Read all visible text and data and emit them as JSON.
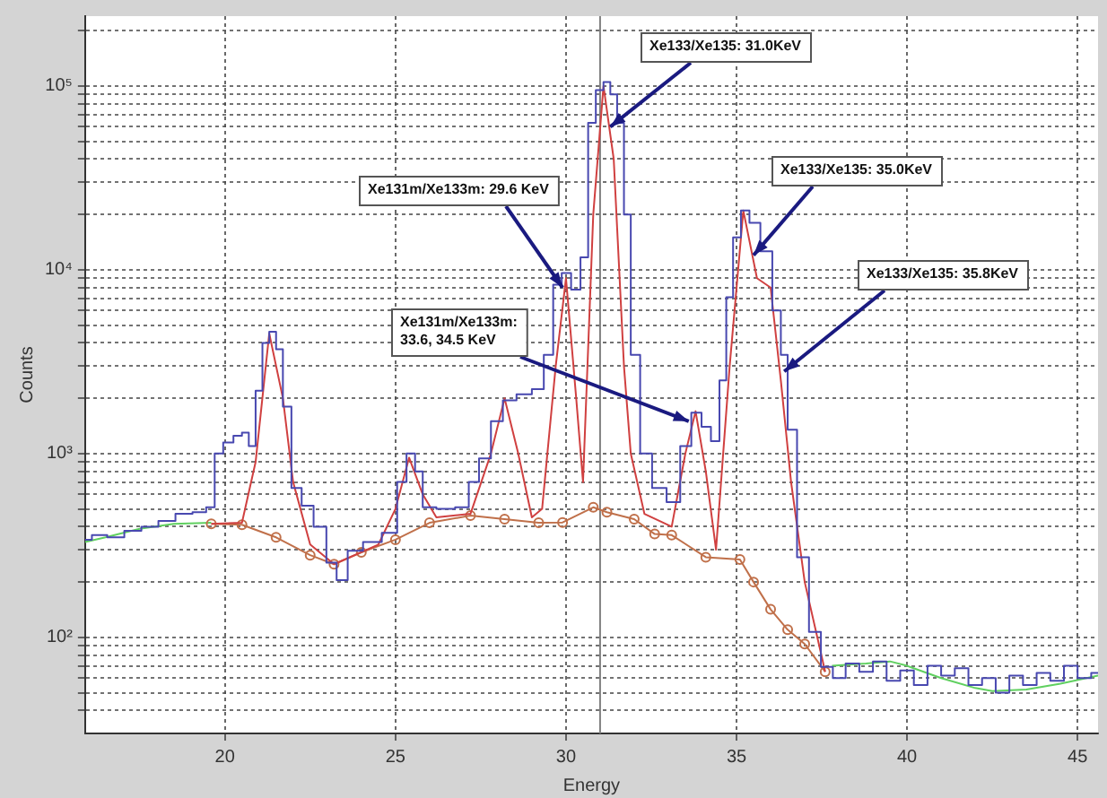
{
  "chart_data": {
    "type": "line",
    "xlabel": "Energy",
    "ylabel": "Counts",
    "log": "y",
    "grid": true,
    "legend": false,
    "xlim": [
      15.9,
      45.6
    ],
    "xticks": [
      20,
      25,
      30,
      35,
      40,
      45
    ],
    "ylim": [
      30,
      240000
    ],
    "yticks": [
      {
        "value": 40,
        "label": null
      },
      {
        "value": 50,
        "label": null
      },
      {
        "value": 60,
        "label": null
      },
      {
        "value": 70,
        "label": null
      },
      {
        "value": 80,
        "label": null
      },
      {
        "value": 90,
        "label": null
      },
      {
        "value": 100,
        "label": "10²"
      },
      {
        "value": 200,
        "label": null
      },
      {
        "value": 300,
        "label": null
      },
      {
        "value": 400,
        "label": null
      },
      {
        "value": 500,
        "label": null
      },
      {
        "value": 600,
        "label": null
      },
      {
        "value": 700,
        "label": null
      },
      {
        "value": 800,
        "label": null
      },
      {
        "value": 900,
        "label": null
      },
      {
        "value": 1000,
        "label": "10³"
      },
      {
        "value": 2000,
        "label": null
      },
      {
        "value": 3000,
        "label": null
      },
      {
        "value": 4000,
        "label": null
      },
      {
        "value": 5000,
        "label": null
      },
      {
        "value": 6000,
        "label": null
      },
      {
        "value": 7000,
        "label": null
      },
      {
        "value": 8000,
        "label": null
      },
      {
        "value": 9000,
        "label": null
      },
      {
        "value": 10000,
        "label": "10⁴"
      },
      {
        "value": 20000,
        "label": null
      },
      {
        "value": 30000,
        "label": null
      },
      {
        "value": 40000,
        "label": null
      },
      {
        "value": 50000,
        "label": null
      },
      {
        "value": 60000,
        "label": null
      },
      {
        "value": 70000,
        "label": null
      },
      {
        "value": 80000,
        "label": null
      },
      {
        "value": 90000,
        "label": null
      },
      {
        "value": 100000,
        "label": "10⁵"
      },
      {
        "value": 200000,
        "label": null
      }
    ],
    "ref_lines": [
      {
        "axis": "x",
        "value": 31,
        "color": "#808080"
      }
    ],
    "series": [
      {
        "type": "step",
        "color": "#4848b0",
        "x": [
          15.9,
          16.3,
          16.8,
          17.3,
          17.8,
          18.3,
          18.8,
          19.3,
          19.6,
          19.8,
          20.1,
          20.4,
          20.6,
          20.8,
          21.0,
          21.2,
          21.4,
          21.6,
          21.8,
          22.1,
          22.4,
          22.8,
          23.15,
          23.4,
          23.8,
          24.3,
          24.9,
          25.2,
          25.45,
          25.7,
          25.9,
          26.5,
          27.0,
          27.3,
          27.6,
          28.0,
          28.3,
          28.8,
          29.2,
          29.5,
          29.75,
          30.0,
          30.3,
          30.55,
          30.75,
          31.0,
          31.2,
          31.4,
          31.6,
          31.8,
          32.0,
          32.35,
          32.7,
          33.2,
          33.5,
          33.85,
          34.1,
          34.4,
          34.6,
          34.8,
          35.0,
          35.26,
          35.5,
          35.9,
          36.2,
          36.4,
          36.6,
          36.95,
          37.3,
          37.65,
          38.0,
          38.4,
          38.8,
          39.2,
          39.6,
          40.0,
          40.4,
          40.8,
          41.2,
          41.6,
          42.0,
          42.4,
          42.8,
          43.2,
          43.6,
          44.0,
          44.4,
          44.8,
          45.2,
          45.6
        ],
        "values": [
          340,
          360,
          350,
          380,
          400,
          430,
          470,
          480,
          510,
          1000,
          1150,
          1250,
          1300,
          1100,
          2200,
          4000,
          4600,
          3700,
          1800,
          650,
          520,
          400,
          255,
          205,
          296,
          330,
          370,
          700,
          1000,
          800,
          510,
          500,
          510,
          700,
          940,
          1500,
          1950,
          2100,
          2240,
          3450,
          8300,
          9600,
          7800,
          11700,
          63000,
          95000,
          105000,
          90000,
          63000,
          20000,
          3450,
          1000,
          650,
          545,
          1100,
          1670,
          1400,
          1170,
          2500,
          7100,
          15000,
          21000,
          18000,
          12600,
          6000,
          3450,
          1350,
          273,
          107,
          69,
          60,
          72,
          65,
          74,
          58,
          66,
          55,
          70,
          62,
          68,
          55,
          60,
          50,
          62,
          55,
          64,
          58,
          70,
          60,
          64
        ]
      },
      {
        "type": "line",
        "color": "#d04040",
        "x": [
          19.6,
          20.5,
          20.9,
          21.3,
          21.7,
          22.0,
          22.5,
          23.2,
          24.5,
          25.0,
          25.4,
          25.8,
          26.2,
          27.2,
          27.8,
          28.2,
          28.6,
          29.0,
          29.3,
          29.7,
          30.0,
          30.3,
          30.5,
          30.8,
          31.1,
          31.4,
          31.7,
          31.9,
          32.3,
          33.1,
          33.5,
          33.8,
          34.1,
          34.4,
          34.8,
          35.2,
          35.6,
          36.0,
          36.3,
          36.6,
          37.0,
          37.6
        ],
        "values": [
          415,
          420,
          900,
          4500,
          2000,
          700,
          320,
          250,
          320,
          500,
          950,
          600,
          450,
          470,
          1000,
          2000,
          1000,
          450,
          500,
          3000,
          9000,
          2000,
          700,
          20000,
          100000,
          40000,
          3000,
          1000,
          470,
          400,
          1000,
          1700,
          800,
          300,
          3000,
          21000,
          9000,
          8000,
          2500,
          700,
          200,
          65
        ]
      },
      {
        "type": "line",
        "color": "#c0704a",
        "marker": "circle",
        "x": [
          19.6,
          20.5,
          21.5,
          22.5,
          23.2,
          24.0,
          25.0,
          26.0,
          27.2,
          28.2,
          29.2,
          29.9,
          30.8,
          31.2,
          32.0,
          32.6,
          33.1,
          34.1,
          35.1,
          35.5,
          36.0,
          36.5,
          37.0,
          37.6
        ],
        "values": [
          415,
          410,
          350,
          280,
          250,
          290,
          340,
          420,
          460,
          440,
          420,
          422,
          510,
          480,
          440,
          365,
          360,
          273,
          265,
          200,
          142,
          110,
          92,
          65
        ]
      },
      {
        "type": "line",
        "color": "#60d060",
        "x": [
          15.9,
          16.5,
          17.5,
          18.5,
          19.6,
          28,
          37.8,
          38.8,
          39.5,
          40.0,
          41.0,
          42.0,
          42.5,
          43.5,
          44.5,
          45.6
        ],
        "values": [
          330,
          350,
          390,
          415,
          420,
          null,
          70,
          72,
          74,
          70,
          60,
          53,
          51,
          52,
          56,
          62
        ]
      }
    ],
    "annotations": [
      {
        "text": "Xe133/Xe135: 31.0KeV",
        "x": 31.3,
        "y": 60000
      },
      {
        "text": "Xe131m/Xe133m: 29.6 KeV",
        "x": 29.9,
        "y": 8000
      },
      {
        "text": "Xe131m/Xe133m:\n33.6, 34.5 KeV",
        "x": 33.6,
        "y": 1500
      },
      {
        "text": "Xe133/Xe135: 35.0KeV",
        "x": 35.5,
        "y": 12000
      },
      {
        "text": "Xe133/Xe135: 35.8KeV",
        "x": 36.4,
        "y": 2800
      }
    ]
  }
}
